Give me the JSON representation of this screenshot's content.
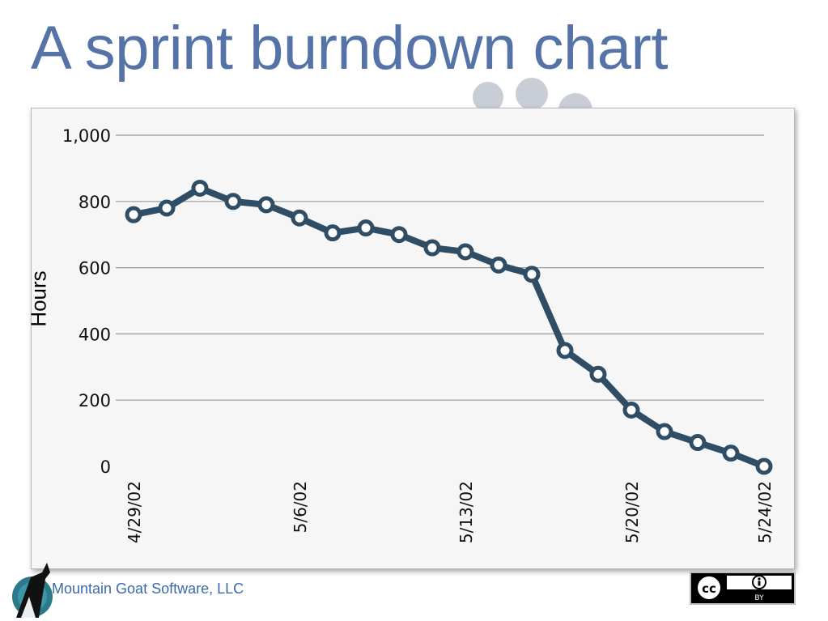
{
  "slide": {
    "title": "A sprint burndown chart",
    "company": "Mountain Goat Software, LLC",
    "license_badge_text": "BY"
  },
  "colors": {
    "title": "#5673a8",
    "series_line": "#2f4d64",
    "grid": "#9a9a9a",
    "company_text": "#3a6aa8"
  },
  "chart_data": {
    "type": "line",
    "title": "",
    "xlabel": "",
    "ylabel": "Hours",
    "ylim": [
      0,
      1000
    ],
    "y_ticks": [
      0,
      200,
      400,
      600,
      800,
      1000
    ],
    "y_tick_labels": [
      "0",
      "200",
      "400",
      "600",
      "800",
      "1,000"
    ],
    "grid": true,
    "legend": "none",
    "x": [
      "4/29/02",
      "4/30/02",
      "5/1/02",
      "5/2/02",
      "5/3/02",
      "5/6/02",
      "5/7/02",
      "5/8/02",
      "5/9/02",
      "5/10/02",
      "5/13/02",
      "5/14/02",
      "5/15/02",
      "5/16/02",
      "5/17/02",
      "5/20/02",
      "5/21/02",
      "5/22/02",
      "5/23/02",
      "5/24/02"
    ],
    "x_tick_labels": [
      {
        "index": 0,
        "label": "4/29/02"
      },
      {
        "index": 5,
        "label": "5/6/02"
      },
      {
        "index": 10,
        "label": "5/13/02"
      },
      {
        "index": 15,
        "label": "5/20/02"
      },
      {
        "index": 19,
        "label": "5/24/02"
      }
    ],
    "series": [
      {
        "values": [
          760,
          780,
          840,
          800,
          790,
          750,
          705,
          720,
          700,
          660,
          648,
          608,
          580,
          350,
          278,
          170,
          105,
          72,
          40,
          0
        ]
      }
    ]
  }
}
